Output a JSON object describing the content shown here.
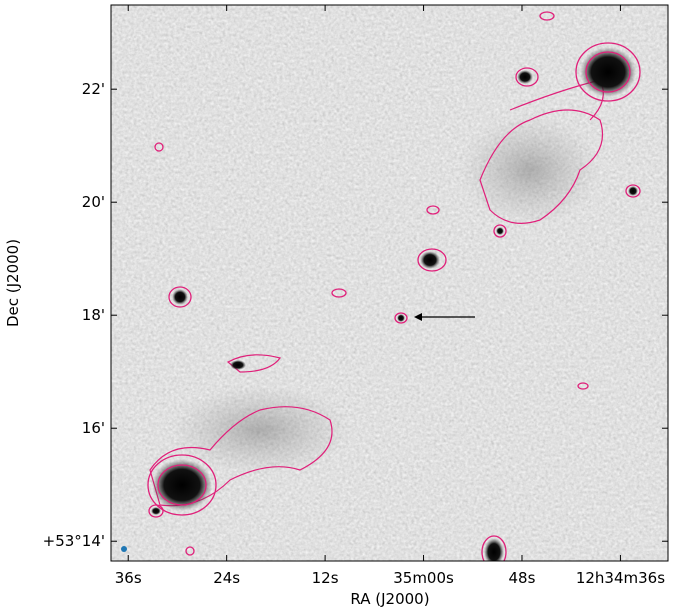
{
  "chart_data": {
    "type": "image",
    "xlabel": "RA (J2000)",
    "ylabel": "Dec (J2000)",
    "xlim": [
      2138.1,
      2070.2
    ],
    "xticks": [
      {
        "value": 2136,
        "label": "36s"
      },
      {
        "value": 2124,
        "label": "24s"
      },
      {
        "value": 2112,
        "label": "12s"
      },
      {
        "value": 2100,
        "label": "35m00s"
      },
      {
        "value": 2088,
        "label": "48s"
      },
      {
        "value": 2076,
        "label": "12h34m36s"
      }
    ],
    "ylim": [
      13.65,
      23.49
    ],
    "yticks": [
      {
        "value": 14,
        "label": "+53°14'"
      },
      {
        "value": 16,
        "label": "16'"
      },
      {
        "value": 18,
        "label": "18'"
      },
      {
        "value": 20,
        "label": "20'"
      },
      {
        "value": 22,
        "label": "22'"
      }
    ],
    "contour_color": "#e0207a"
  }
}
